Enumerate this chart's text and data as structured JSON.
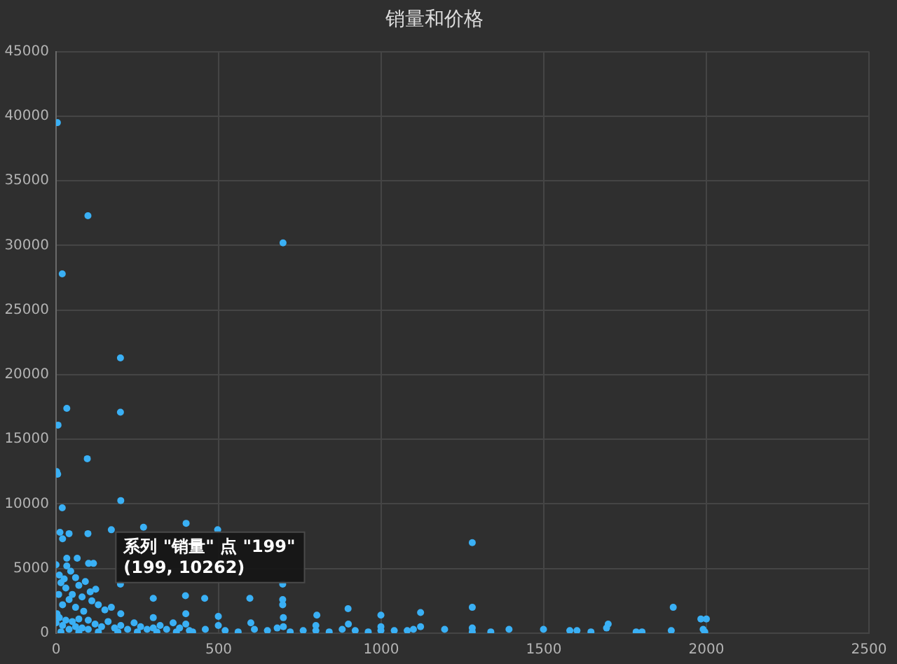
{
  "chart_data": {
    "type": "scatter",
    "title": "销量和价格",
    "x": [
      4,
      98,
      19,
      698,
      198,
      198,
      33,
      6,
      96,
      2,
      5,
      199,
      19,
      12,
      20,
      40,
      98,
      170,
      269,
      400,
      497,
      0,
      33,
      33,
      65,
      100,
      115,
      122,
      170,
      198,
      299,
      398,
      457,
      596,
      697,
      697,
      697,
      499,
      802,
      898,
      999,
      1121,
      1121,
      1280,
      1280,
      1898,
      1983,
      2000,
      1698,
      10,
      15,
      25,
      30,
      45,
      50,
      60,
      70,
      80,
      90,
      105,
      110,
      130,
      150,
      8,
      40,
      60,
      85,
      20,
      3,
      0,
      10,
      20,
      30,
      40,
      50,
      60,
      70,
      80,
      99,
      99,
      120,
      140,
      160,
      180,
      199,
      199,
      220,
      240,
      260,
      280,
      299,
      299,
      320,
      340,
      360,
      380,
      399,
      399,
      410,
      15,
      70,
      130,
      190,
      250,
      310,
      370,
      420,
      459,
      499,
      520,
      560,
      599,
      610,
      650,
      680,
      699,
      699,
      720,
      760,
      799,
      799,
      840,
      880,
      899,
      920,
      960,
      999,
      999,
      1040,
      1080,
      1099,
      1195,
      1280,
      1280,
      1337,
      1393,
      1499,
      1580,
      1602,
      1645,
      1693,
      1784,
      1802,
      1892,
      1990,
      1995
    ],
    "values": [
      39500,
      32300,
      27800,
      30200,
      21300,
      17100,
      17400,
      16100,
      13500,
      12500,
      12300,
      10262,
      9700,
      7800,
      7300,
      7700,
      7700,
      8000,
      8200,
      8500,
      8000,
      5300,
      5800,
      5200,
      5800,
      5400,
      5400,
      3400,
      2000,
      3800,
      2700,
      2900,
      2700,
      2700,
      3800,
      2600,
      2200,
      1300,
      1400,
      1900,
      1400,
      1600,
      500,
      7000,
      2000,
      2000,
      1100,
      1100,
      700,
      4500,
      3900,
      4200,
      3500,
      4800,
      3000,
      4300,
      3700,
      2800,
      4000,
      3200,
      2500,
      2200,
      1800,
      3000,
      2600,
      2000,
      1700,
      2200,
      1500,
      800,
      1200,
      600,
      1000,
      300,
      900,
      500,
      1100,
      400,
      1000,
      300,
      700,
      500,
      900,
      400,
      1500,
      600,
      300,
      800,
      500,
      300,
      1200,
      400,
      600,
      300,
      800,
      400,
      1500,
      700,
      200,
      100,
      100,
      100,
      100,
      100,
      100,
      100,
      100,
      300,
      600,
      200,
      100,
      800,
      300,
      200,
      400,
      1200,
      500,
      100,
      200,
      600,
      200,
      100,
      300,
      700,
      200,
      100,
      500,
      200,
      200,
      200,
      300,
      300,
      400,
      100,
      100,
      300,
      300,
      200,
      200,
      100,
      400,
      100,
      100,
      200,
      300,
      100
    ],
    "color": "#3ab0f5",
    "marker": "circle",
    "xlim": [
      0,
      2500
    ],
    "xticks": [
      0,
      500,
      1000,
      1500,
      2000,
      2500
    ],
    "ylim": [
      0,
      45000
    ],
    "yticks": [
      0,
      5000,
      10000,
      15000,
      20000,
      25000,
      30000,
      35000,
      40000,
      45000
    ],
    "grid": true,
    "annotations": [
      {
        "text": "系列 \"销量\" 点 \"199\"\n(199, 10262)",
        "x": 199,
        "y": 10262
      }
    ]
  }
}
